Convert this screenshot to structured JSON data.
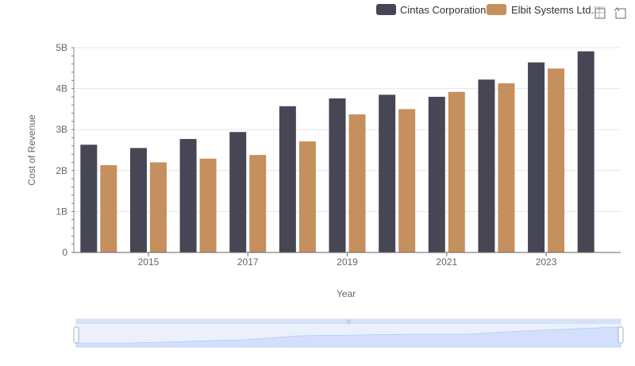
{
  "legend": {
    "items": [
      {
        "label": "Cintas Corporation",
        "color": "#464655"
      },
      {
        "label": "Elbit Systems Ltd.",
        "color": "#c58f5e"
      }
    ]
  },
  "toolbar": {
    "zoom_icon": "zoom-select-icon",
    "reset_icon": "zoom-reset-icon"
  },
  "chart_data": {
    "type": "bar",
    "title": "",
    "xlabel": "Year",
    "ylabel": "Cost of Revenue",
    "ylim": [
      0,
      5000000000
    ],
    "y_ticks": [
      {
        "value": 0,
        "label": "0"
      },
      {
        "value": 1000000000,
        "label": "1B"
      },
      {
        "value": 2000000000,
        "label": "2B"
      },
      {
        "value": 3000000000,
        "label": "3B"
      },
      {
        "value": 4000000000,
        "label": "4B"
      },
      {
        "value": 5000000000,
        "label": "5B"
      }
    ],
    "categories": [
      "2014",
      "2015",
      "2016",
      "2017",
      "2018",
      "2019",
      "2020",
      "2021",
      "2022",
      "2023",
      "2024"
    ],
    "x_tick_labels": [
      "2015",
      "2017",
      "2019",
      "2021",
      "2023"
    ],
    "series": [
      {
        "name": "Cintas Corporation",
        "color": "#464655",
        "values": [
          2630000000,
          2550000000,
          2770000000,
          2940000000,
          3570000000,
          3760000000,
          3850000000,
          3800000000,
          4220000000,
          4640000000,
          4910000000
        ]
      },
      {
        "name": "Elbit Systems Ltd.",
        "color": "#c58f5e",
        "values": [
          2130000000,
          2200000000,
          2290000000,
          2380000000,
          2710000000,
          3370000000,
          3500000000,
          3920000000,
          4130000000,
          4490000000,
          null
        ]
      }
    ],
    "grid": true,
    "legend_position": "top-right"
  }
}
